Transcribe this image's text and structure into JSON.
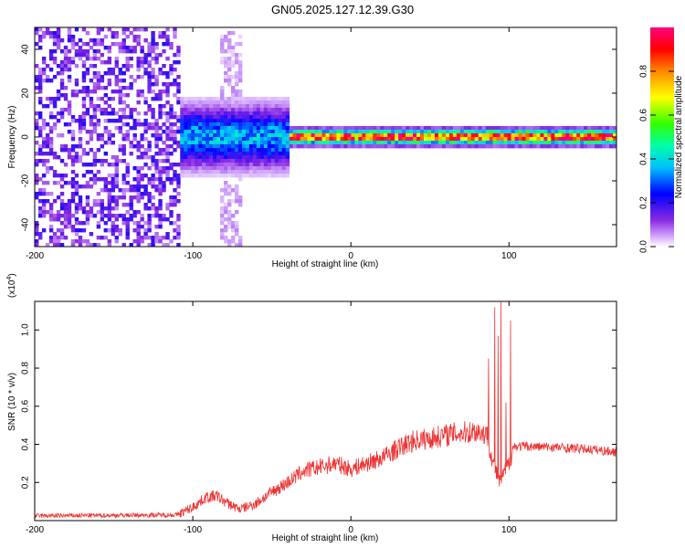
{
  "title": "GN05.2025.127.12.39.G30",
  "chart_data": [
    {
      "type": "heatmap",
      "xlabel": "Height of straight line (km)",
      "ylabel": "Frequency (Hz)",
      "xlim": [
        -200,
        168
      ],
      "ylim": [
        -50,
        50
      ],
      "x_ticks": [
        "-200",
        "-100",
        "0",
        "100"
      ],
      "y_ticks": [
        "40",
        "20",
        "0",
        "-20",
        "-40"
      ],
      "colorbar": {
        "label": "Normalized spectral amplitude",
        "range": [
          0,
          1
        ],
        "ticks": [
          "0.0",
          "0.2",
          "0.4",
          "0.6",
          "0.8"
        ]
      },
      "features": [
        {
          "segment": "noise",
          "x_range": [
            -200,
            -108
          ],
          "freq_range": [
            -50,
            50
          ],
          "amplitude": 0.15
        },
        {
          "segment": "faint band",
          "x_range": [
            -82,
            -68
          ],
          "freq_range": [
            -50,
            48
          ],
          "amplitude": 0.05
        },
        {
          "segment": "onset",
          "x_range": [
            -108,
            -40
          ],
          "freq_center": 0,
          "freq_halfwidth": 8,
          "amplitude": 0.35
        },
        {
          "segment": "steady",
          "x_range": [
            -40,
            168
          ],
          "freq_center": 0,
          "freq_halfwidth": 2,
          "amplitude": 0.9
        }
      ]
    },
    {
      "type": "line",
      "xlabel": "Height of straight line (km)",
      "ylabel": "SNR (10 * v/v)",
      "y_scale_label": "(x10",
      "y_scale_exp": "4",
      "xlim": [
        -200,
        168
      ],
      "ylim": [
        0,
        1.15
      ],
      "x_ticks": [
        "-200",
        "-100",
        "0",
        "100"
      ],
      "y_ticks": [
        "1.0",
        "0.8",
        "0.6",
        "0.4",
        "0.2"
      ],
      "color": "#ee3333",
      "profile": [
        [
          -200,
          0.025
        ],
        [
          -110,
          0.03
        ],
        [
          -100,
          0.07
        ],
        [
          -92,
          0.12
        ],
        [
          -85,
          0.13
        ],
        [
          -78,
          0.09
        ],
        [
          -70,
          0.06
        ],
        [
          -60,
          0.09
        ],
        [
          -50,
          0.15
        ],
        [
          -40,
          0.2
        ],
        [
          -30,
          0.26
        ],
        [
          -20,
          0.28
        ],
        [
          -10,
          0.3
        ],
        [
          0,
          0.27
        ],
        [
          10,
          0.3
        ],
        [
          20,
          0.33
        ],
        [
          30,
          0.38
        ],
        [
          40,
          0.42
        ],
        [
          50,
          0.43
        ],
        [
          60,
          0.45
        ],
        [
          70,
          0.46
        ],
        [
          80,
          0.47
        ],
        [
          86,
          0.45
        ],
        [
          90,
          0.3
        ],
        [
          94,
          0.2
        ],
        [
          100,
          0.3
        ],
        [
          103,
          0.39
        ],
        [
          110,
          0.39
        ],
        [
          130,
          0.385
        ],
        [
          150,
          0.375
        ],
        [
          168,
          0.36
        ]
      ],
      "peaks": [
        [
          87,
          0.85
        ],
        [
          91,
          1.12
        ],
        [
          93,
          0.97
        ],
        [
          95,
          1.15
        ],
        [
          101,
          1.05
        ],
        [
          98,
          0.62
        ]
      ]
    }
  ]
}
